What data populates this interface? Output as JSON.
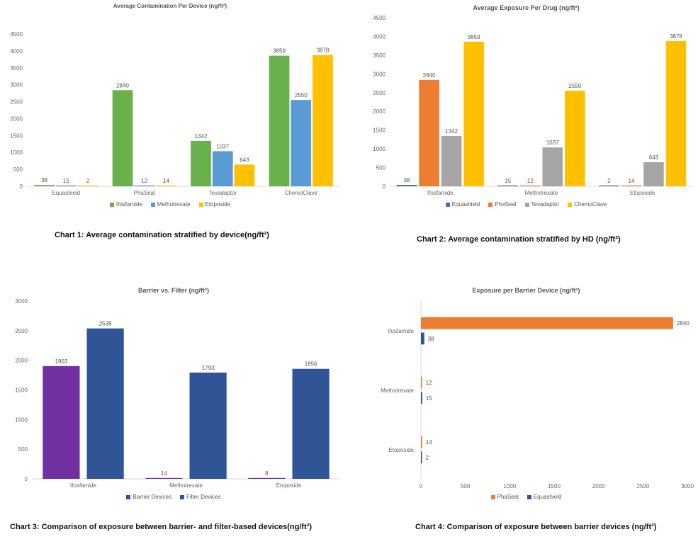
{
  "chart_data": [
    {
      "type": "bar",
      "title": "Average Contamination Per Device (ng/ft²)",
      "caption": "Chart 1:  Average contamination stratified by device(ng/ft²)",
      "categories": [
        "Equashield",
        "PhaSeal",
        "Tevadaptor",
        "ChemoClave"
      ],
      "series": [
        {
          "name": "Ifosfamide",
          "color": "#6ab04c",
          "values": [
            38,
            2840,
            1342,
            3859
          ]
        },
        {
          "name": "Methotrexate",
          "color": "#5b9bd5",
          "values": [
            15,
            12,
            1037,
            2550
          ]
        },
        {
          "name": "Etoposide",
          "color": "#ffc000",
          "values": [
            2,
            14,
            643,
            3878
          ]
        }
      ],
      "ylim": [
        0,
        4500
      ],
      "yticks": [
        0,
        500,
        1000,
        1500,
        2000,
        2500,
        3000,
        3500,
        4000,
        4500
      ],
      "grid": false,
      "legend": "bottom"
    },
    {
      "type": "bar",
      "title": "Average Exposure Per Drug (ng/ft²)",
      "caption": "Chart 2:  Average contamination stratified by HD (ng/ft²)",
      "categories": [
        "Ifosfamide",
        "Methotrexate",
        "Etoposide"
      ],
      "series": [
        {
          "name": "Equashield",
          "color": "#4472c4",
          "values": [
            38,
            15,
            2
          ]
        },
        {
          "name": "PhaSeal",
          "color": "#ed7d31",
          "values": [
            2840,
            12,
            14
          ]
        },
        {
          "name": "Tevadaptor",
          "color": "#a5a5a5",
          "values": [
            1342,
            1037,
            643
          ]
        },
        {
          "name": "ChemoClave",
          "color": "#ffc000",
          "values": [
            3859,
            2550,
            3878
          ]
        }
      ],
      "ylim": [
        0,
        4500
      ],
      "yticks": [
        0,
        500,
        1000,
        1500,
        2000,
        2500,
        3000,
        3500,
        4000,
        4500
      ],
      "grid": false,
      "legend": "bottom"
    },
    {
      "type": "bar",
      "title": "Barrier vs. Filter (ng/ft²)",
      "caption": "Chart 3: Comparison of exposure between barrier- and filter-based devices(ng/ft²)",
      "categories": [
        "Ifosfamide",
        "Methotrexate",
        "Etoposide"
      ],
      "series": [
        {
          "name": "Barrier Devices",
          "color": "#7030a0",
          "values": [
            1903,
            14,
            8
          ]
        },
        {
          "name": "Filter Devices",
          "color": "#2f5597",
          "values": [
            2538,
            1793,
            1856
          ]
        }
      ],
      "ylim": [
        0,
        3000
      ],
      "yticks": [
        0,
        500,
        1000,
        1500,
        2000,
        2500,
        3000
      ],
      "grid": false,
      "legend": "bottom"
    },
    {
      "type": "bar",
      "orientation": "horizontal",
      "title": "Exposure per Barrier Device (ng/ft²)",
      "caption": "Chart 4: Comparison of exposure between barrier devices (ng/ft²)",
      "categories": [
        "Ifosfamide",
        "Methotrexate",
        "Etoposide"
      ],
      "series": [
        {
          "name": "PhaSeal",
          "color": "#ed7d31",
          "values": [
            2840,
            12,
            14
          ]
        },
        {
          "name": "Equashield",
          "color": "#2f5597",
          "values": [
            38,
            15,
            2
          ]
        }
      ],
      "xlim": [
        0,
        3000
      ],
      "xticks": [
        0,
        500,
        1000,
        1500,
        2000,
        2500,
        3000
      ],
      "grid": false,
      "legend": "bottom"
    }
  ]
}
